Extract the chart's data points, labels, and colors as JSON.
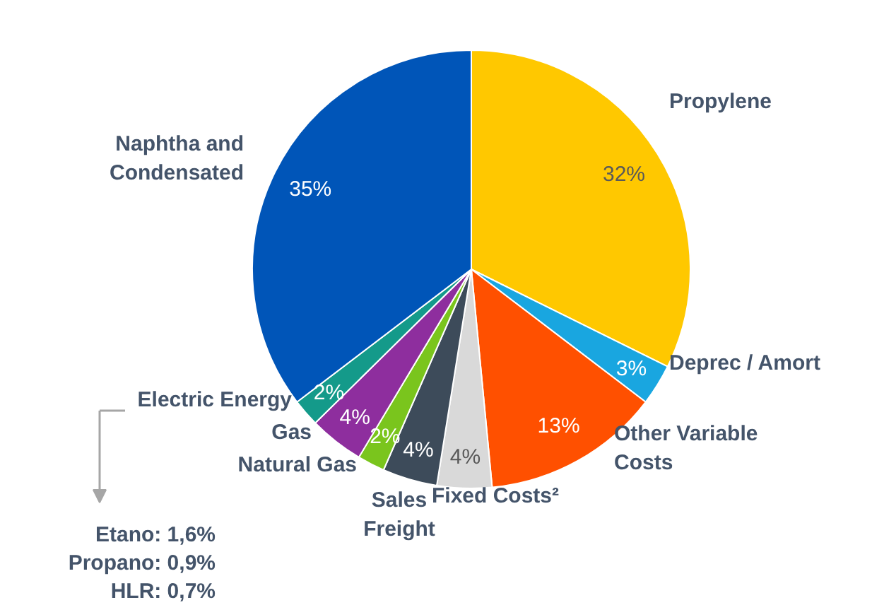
{
  "chart_data": {
    "type": "pie",
    "categories": [
      "Propylene",
      "Deprec / Amort",
      "Other Variable Costs",
      "Fixed Costs²",
      "Sales Freight",
      "Natural Gas",
      "Gas",
      "Electric Energy",
      "Naphtha and Condensated"
    ],
    "values": [
      32,
      3,
      13,
      4,
      4,
      2,
      4,
      2,
      35
    ],
    "colors": [
      "#ffc800",
      "#19a6e0",
      "#ff5000",
      "#d9d9d9",
      "#3d4b5a",
      "#7ac51d",
      "#8e2e9e",
      "#149a8a",
      "#0055b8"
    ],
    "value_labels": [
      "32%",
      "3%",
      "13%",
      "4%",
      "4%",
      "2%",
      "4%",
      "2%",
      "35%"
    ],
    "annotations": [
      "Etano: 1,6%",
      "Propano: 0,9%",
      "HLR: 0,7%"
    ]
  }
}
